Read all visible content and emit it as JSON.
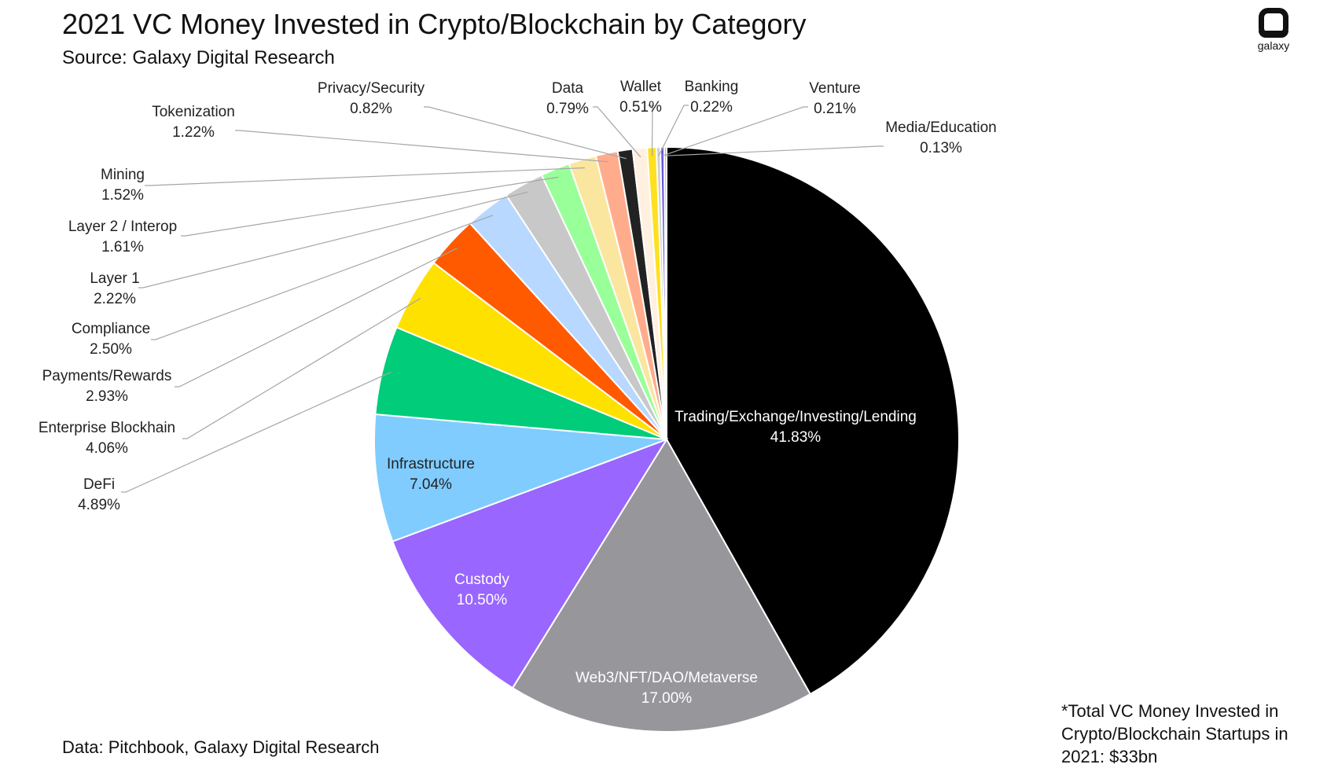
{
  "header": {
    "title": "2021 VC Money Invested in Crypto/Blockchain by Category",
    "subtitle": "Source: Galaxy Digital Research"
  },
  "footer": {
    "data_source": "Data: Pitchbook, Galaxy Digital Research",
    "total_note": "*Total VC Money Invested in Crypto/Blockchain Startups in 2021: $33bn"
  },
  "logo": {
    "icon": "galaxy-logo-icon",
    "wordmark": "galaxy"
  },
  "chart_data": {
    "type": "pie",
    "start_angle_deg": 0,
    "direction": "clockwise",
    "slices": [
      {
        "label": "Trading/Exchange/Investing/Lending",
        "value": 41.83,
        "display": "41.83%",
        "color": "#000000",
        "text_color": "#ffffff"
      },
      {
        "label": "Web3/NFT/DAO/Metaverse",
        "value": 17.0,
        "display": "17.00%",
        "color": "#97979b",
        "text_color": "#ffffff"
      },
      {
        "label": "Custody",
        "value": 10.5,
        "display": "10.50%",
        "color": "#9966ff",
        "text_color": "#ffffff"
      },
      {
        "label": "Infrastructure",
        "value": 7.04,
        "display": "7.04%",
        "color": "#80ccff",
        "text_color": "#222222"
      },
      {
        "label": "DeFi",
        "value": 4.89,
        "display": "4.89%",
        "color": "#00cc7a",
        "text_color": "#222222"
      },
      {
        "label": "Enterprise Blockhain",
        "value": 4.06,
        "display": "4.06%",
        "color": "#ffe100",
        "text_color": "#222222"
      },
      {
        "label": "Payments/Rewards",
        "value": 2.93,
        "display": "2.93%",
        "color": "#ff5a00",
        "text_color": "#222222"
      },
      {
        "label": "Compliance",
        "value": 2.5,
        "display": "2.50%",
        "color": "#b8d8ff",
        "text_color": "#222222"
      },
      {
        "label": "Layer 1",
        "value": 2.22,
        "display": "2.22%",
        "color": "#c8c8c8",
        "text_color": "#222222"
      },
      {
        "label": "Layer 2 / Interop",
        "value": 1.61,
        "display": "1.61%",
        "color": "#99ff99",
        "text_color": "#222222"
      },
      {
        "label": "Mining",
        "value": 1.52,
        "display": "1.52%",
        "color": "#fbe6a0",
        "text_color": "#222222"
      },
      {
        "label": "Tokenization",
        "value": 1.22,
        "display": "1.22%",
        "color": "#ffac8c",
        "text_color": "#222222"
      },
      {
        "label": "Privacy/Security",
        "value": 0.82,
        "display": "0.82%",
        "color": "#222222",
        "text_color": "#222222"
      },
      {
        "label": "Data",
        "value": 0.79,
        "display": "0.79%",
        "color": "#fff0e0",
        "text_color": "#222222"
      },
      {
        "label": "Wallet",
        "value": 0.51,
        "display": "0.51%",
        "color": "#ffe020",
        "text_color": "#222222"
      },
      {
        "label": "Banking",
        "value": 0.22,
        "display": "0.22%",
        "color": "#cfcfcf",
        "text_color": "#222222"
      },
      {
        "label": "Venture",
        "value": 0.21,
        "display": "0.21%",
        "color": "#6655dd",
        "text_color": "#222222"
      },
      {
        "label": "Media/Education",
        "value": 0.13,
        "display": "0.13%",
        "color": "#b9a0ff",
        "text_color": "#222222"
      }
    ]
  }
}
